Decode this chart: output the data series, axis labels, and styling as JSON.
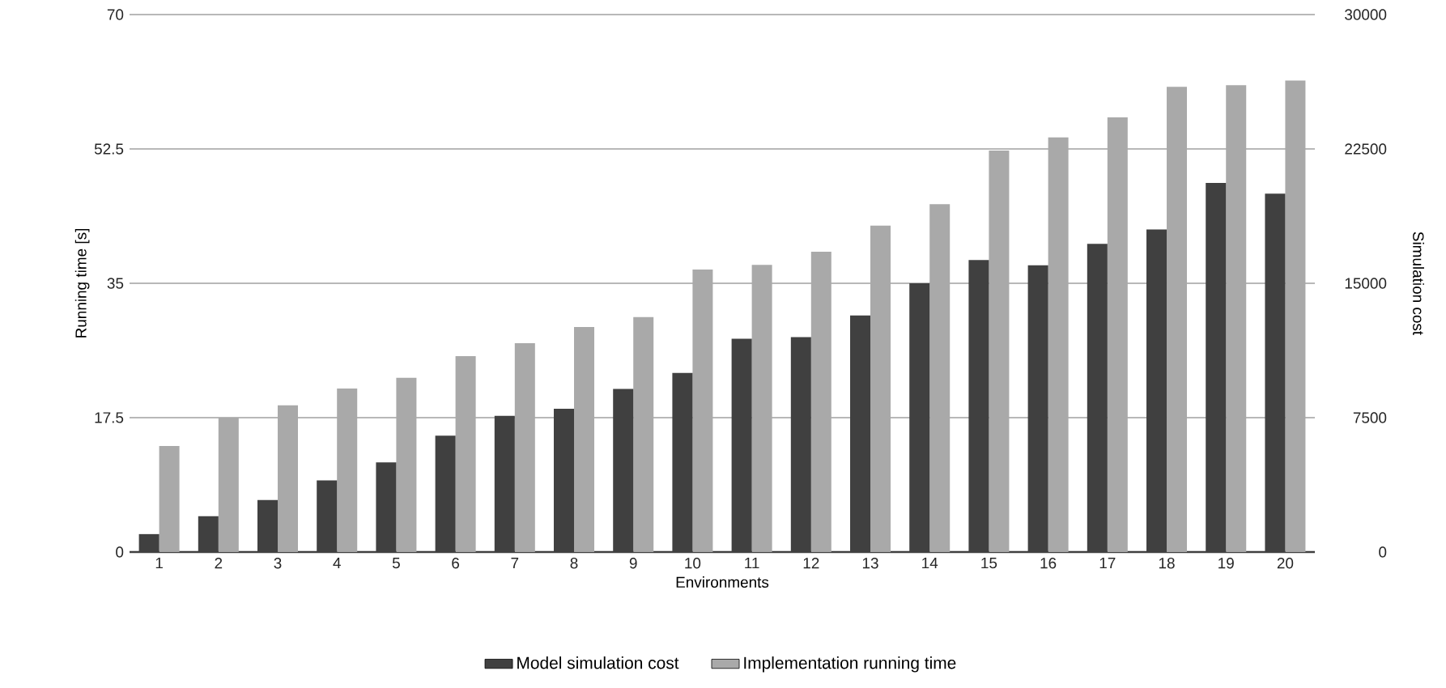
{
  "chart_data": {
    "type": "bar",
    "xlabel": "Environments",
    "ylabel": "Running time [s]",
    "y2label": "Simulation cost",
    "categories": [
      "1",
      "2",
      "3",
      "4",
      "5",
      "6",
      "7",
      "8",
      "9",
      "10",
      "11",
      "12",
      "13",
      "14",
      "15",
      "16",
      "17",
      "18",
      "19",
      "20"
    ],
    "series": [
      {
        "name": "Model simulation cost",
        "color": "#404040",
        "axis": "y2",
        "values": [
          1000,
          2000,
          2900,
          4000,
          5000,
          6500,
          7600,
          8000,
          9100,
          10000,
          11900,
          12000,
          13200,
          15000,
          16300,
          16000,
          17200,
          18000,
          20600,
          20000
        ]
      },
      {
        "name": "Implementation running time",
        "color": "#a9a9a9",
        "values": [
          13.8,
          17.5,
          19.1,
          21.3,
          22.7,
          25.5,
          27.2,
          29.3,
          30.6,
          36.8,
          37.4,
          39.1,
          42.5,
          45.3,
          52.3,
          54.0,
          56.6,
          60.6,
          60.8,
          61.4
        ]
      }
    ],
    "ylim": [
      0,
      70
    ],
    "yticks": [
      0,
      17.5,
      35,
      52.5,
      70
    ],
    "y2lim": [
      0,
      30000
    ],
    "y2ticks": [
      0,
      7500,
      15000,
      22500,
      30000
    ],
    "grid": "y",
    "legend": "bottom"
  }
}
